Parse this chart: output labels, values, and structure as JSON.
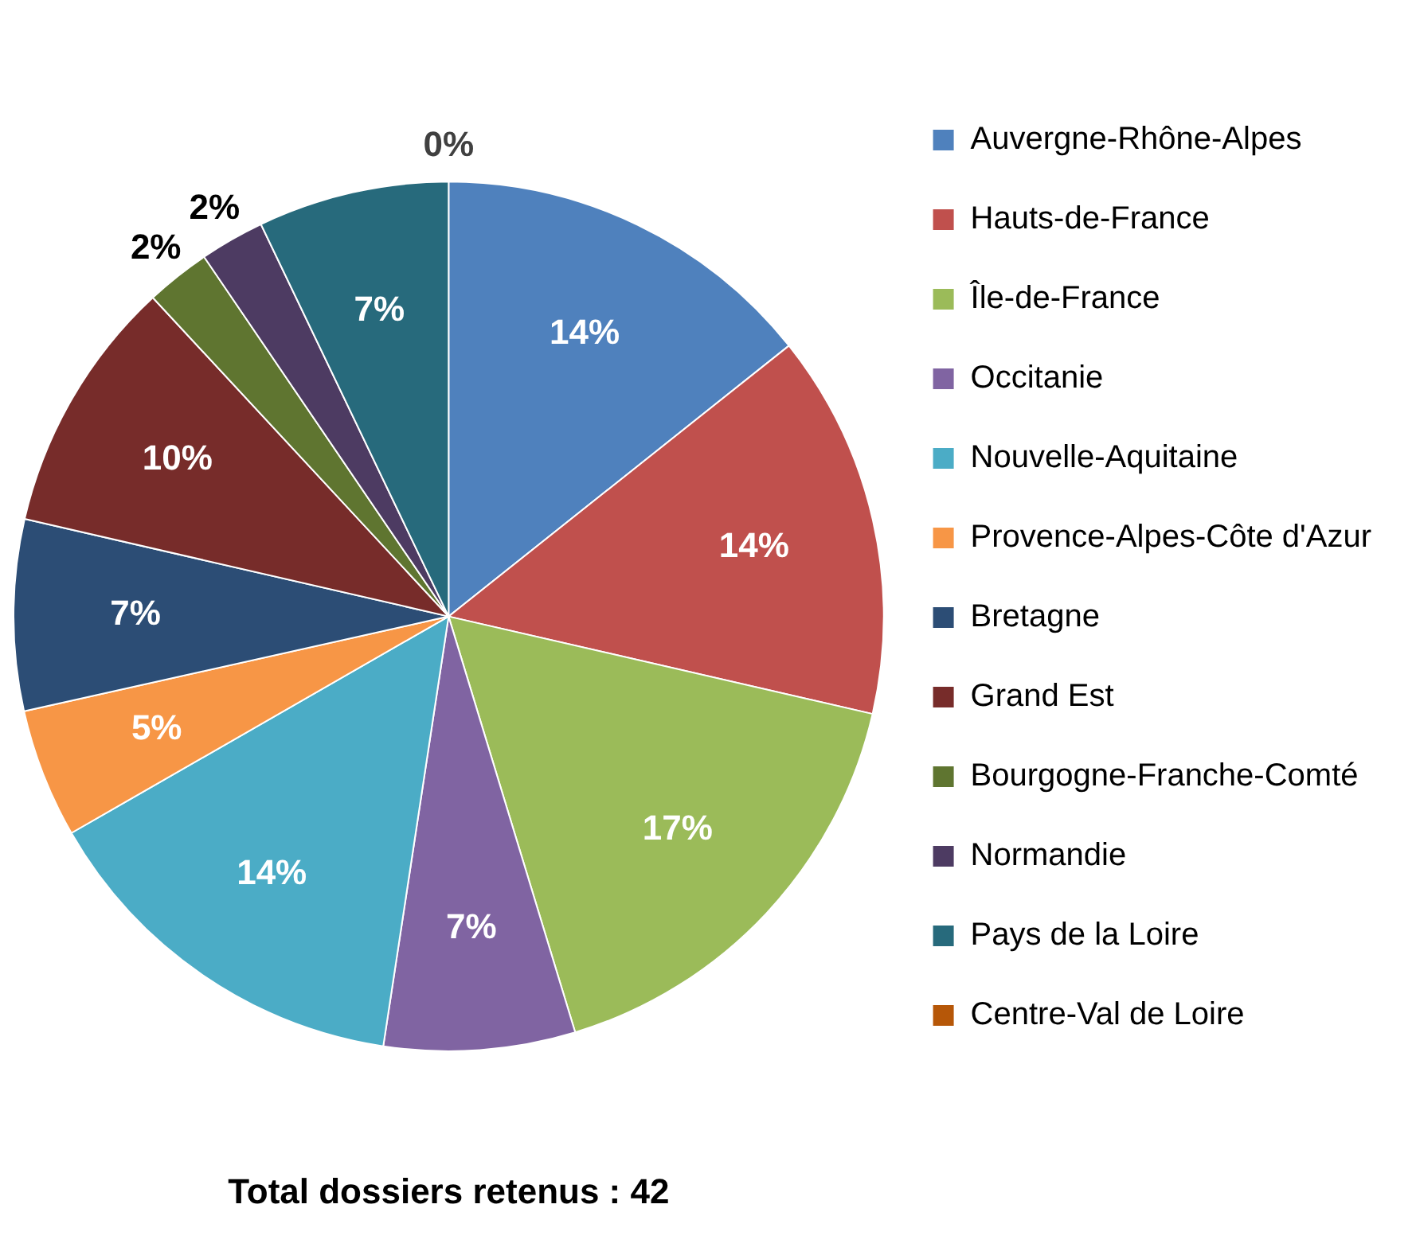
{
  "chart_data": {
    "type": "pie",
    "title": "Total dossiers retenus : 42",
    "categories": [
      "Auvergne-Rhône-Alpes",
      "Hauts-de-France",
      "Île-de-France",
      "Occitanie",
      "Nouvelle-Aquitaine",
      "Provence-Alpes-Côte d'Azur",
      "Bretagne",
      "Grand Est",
      "Bourgogne-Franche-Comté",
      "Normandie",
      "Pays de la Loire",
      "Centre-Val de Loire"
    ],
    "values": [
      14.3,
      14.3,
      16.7,
      7.1,
      14.3,
      4.8,
      7.1,
      9.5,
      2.4,
      2.4,
      7.1,
      0
    ],
    "value_labels": [
      "14%",
      "14%",
      "17%",
      "7%",
      "14%",
      "5%",
      "7%",
      "10%",
      "2%",
      "2%",
      "7%",
      "0%"
    ],
    "colors": [
      "#4f81bd",
      "#c0504d",
      "#9bbb59",
      "#8064a2",
      "#4bacc6",
      "#f79646",
      "#2c4d75",
      "#772c2a",
      "#5f7530",
      "#4d3b62",
      "#276a7c",
      "#b65708"
    ],
    "legend": "right"
  }
}
